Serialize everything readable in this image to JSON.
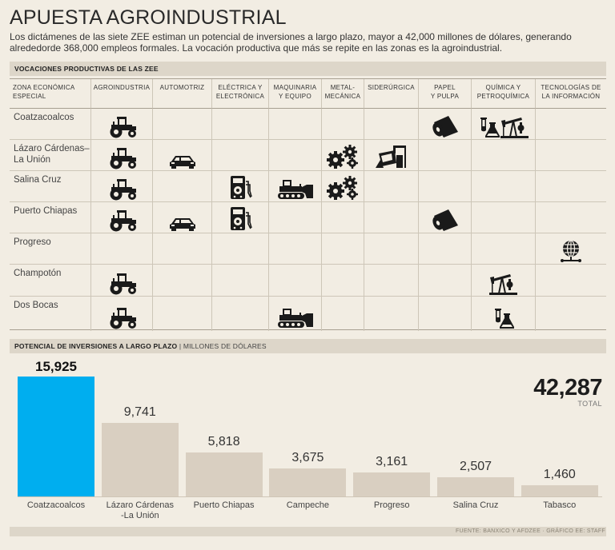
{
  "title": "APUESTA AGROINDUSTRIAL",
  "subtitle": "Los dictámenes de las siete ZEE estiman un potencial de inversiones a largo plazo, mayor a 42,000 millones de dólares, generando alrededorde 368,000 empleos formales. La vocación productiva que más se repite en las zonas es la agroindustrial.",
  "section1": "VOCACIONES PRODUCTIVAS DE LAS ZEE",
  "table": {
    "corner_header": [
      "ZONA ECONÓMICA",
      "ESPECIAL"
    ],
    "columns": [
      {
        "key": "agro",
        "label": [
          "AGROINDUSTRIA"
        ]
      },
      {
        "key": "auto",
        "label": [
          "AUTOMOTRIZ"
        ]
      },
      {
        "key": "elec",
        "label": [
          "ELÉCTRICA Y",
          "ELECTRÓNICA"
        ]
      },
      {
        "key": "maq",
        "label": [
          "MAQUINARIA",
          "Y EQUIPO"
        ]
      },
      {
        "key": "metal",
        "label": [
          "METAL-",
          "MECÁNICA"
        ]
      },
      {
        "key": "sider",
        "label": [
          "SIDERÚRGICA"
        ]
      },
      {
        "key": "papel",
        "label": [
          "PAPEL",
          "Y PULPA"
        ]
      },
      {
        "key": "quim",
        "label": [
          "QUÍMICA Y",
          "PETROQUÍMICA"
        ]
      },
      {
        "key": "tec",
        "label": [
          "TECNOLOGÍAS DE",
          "LA INFORMACIÓN"
        ]
      }
    ],
    "rows": [
      {
        "zone": [
          "Coatzacoalcos"
        ],
        "agro": [
          "tractor-icon"
        ],
        "papel": [
          "paper-roll-icon"
        ],
        "quim": [
          "flask-icon",
          "oil-pump-icon"
        ]
      },
      {
        "zone": [
          "Lázaro Cárdenas–",
          "La Unión"
        ],
        "agro": [
          "tractor-icon"
        ],
        "auto": [
          "car-icon"
        ],
        "metal": [
          "gears-icon"
        ],
        "sider": [
          "steel-ladle-icon"
        ]
      },
      {
        "zone": [
          "Salina Cruz"
        ],
        "agro": [
          "tractor-icon"
        ],
        "elec": [
          "multimeter-icon"
        ],
        "maq": [
          "bulldozer-icon"
        ],
        "metal": [
          "gears-icon"
        ]
      },
      {
        "zone": [
          "Puerto Chiapas"
        ],
        "agro": [
          "tractor-icon"
        ],
        "auto": [
          "car-icon"
        ],
        "elec": [
          "multimeter-icon"
        ],
        "papel": [
          "paper-roll-icon"
        ]
      },
      {
        "zone": [
          "Progreso"
        ],
        "tec": [
          "globe-network-icon"
        ]
      },
      {
        "zone": [
          "Champotón"
        ],
        "agro": [
          "tractor-icon"
        ],
        "quim": [
          "oil-pump-icon"
        ]
      },
      {
        "zone": [
          "Dos Bocas"
        ],
        "agro": [
          "tractor-icon"
        ],
        "maq": [
          "bulldozer-icon"
        ],
        "quim": [
          "flask-icon"
        ]
      }
    ]
  },
  "section2": {
    "label": "POTENCIAL DE INVERSIONES A LARGO PLAZO",
    "unit": "MILLONES DE DÓLARES"
  },
  "chart_data": {
    "type": "bar",
    "title": "POTENCIAL DE INVERSIONES A LARGO PLAZO",
    "ylabel": "MILLONES DE DÓLARES",
    "xlabel": "",
    "categories": [
      "Coatzacoalcos",
      "Lázaro Cárdenas -La Unión",
      "Puerto Chiapas",
      "Campeche",
      "Progreso",
      "Salina Cruz",
      "Tabasco"
    ],
    "category_lines": [
      [
        "Coatzacoalcos"
      ],
      [
        "Lázaro Cárdenas",
        "-La Unión"
      ],
      [
        "Puerto Chiapas"
      ],
      [
        "Campeche"
      ],
      [
        "Progreso"
      ],
      [
        "Salina Cruz"
      ],
      [
        "Tabasco"
      ]
    ],
    "values": [
      15925,
      9741,
      5818,
      3675,
      3161,
      2507,
      1460
    ],
    "value_labels": [
      "15,925",
      "9,741",
      "5,818",
      "3,675",
      "3,161",
      "2,507",
      "1,460"
    ],
    "highlight_index": 0,
    "ylim": [
      0,
      15925
    ],
    "grid": false,
    "colors": {
      "highlight": "#00aeef",
      "default": "#d9cfc1"
    }
  },
  "total": {
    "value": "42,287",
    "label": "TOTAL"
  },
  "source": "FUENTE: BANXICO Y AFDZEE · GRÁFICO EE: STAFF"
}
